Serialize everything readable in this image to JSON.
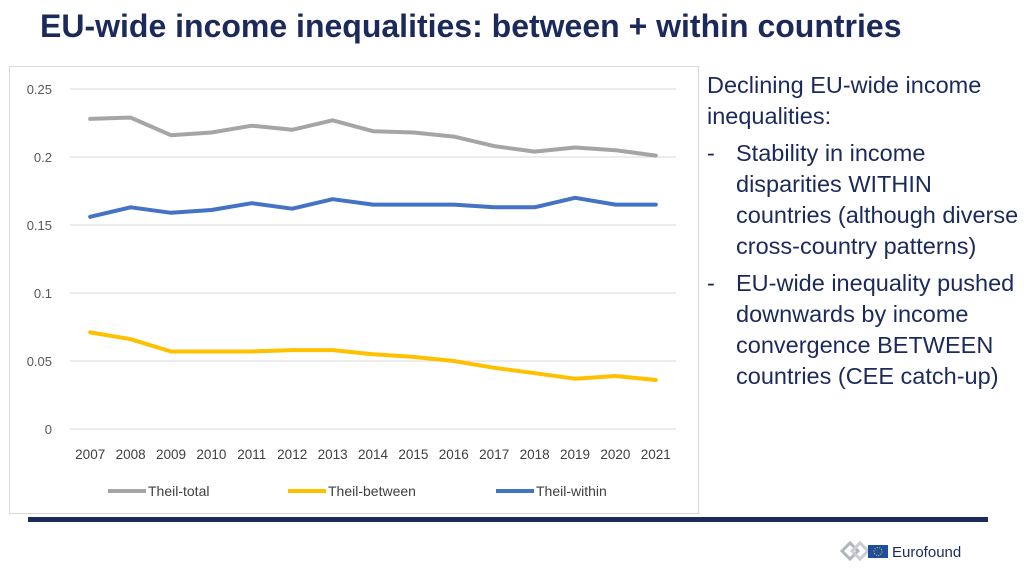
{
  "slide": {
    "title": "EU-wide income inequalities: between + within countries"
  },
  "notes": {
    "lead": "Declining EU-wide income inequalities:",
    "bullets": [
      "Stability in income disparities WITHIN countries (although diverse cross-country patterns)",
      "EU-wide inequality pushed downwards by income convergence BETWEEN countries (CEE catch-up)"
    ],
    "bullet_marker": "-"
  },
  "footer": {
    "logo_text": "Eurofound",
    "logo_icon": "eurofound-logo-icon",
    "rule_color": "#1b2a5a"
  },
  "chart_data": {
    "type": "line",
    "title": "",
    "xlabel": "",
    "ylabel": "",
    "ylim": [
      0,
      0.25
    ],
    "yticks": [
      "0",
      "0.05",
      "0.1",
      "0.15",
      "0.2",
      "0.25"
    ],
    "x": [
      "2007",
      "2008",
      "2009",
      "2010",
      "2011",
      "2012",
      "2013",
      "2014",
      "2015",
      "2016",
      "2017",
      "2018",
      "2019",
      "2020",
      "2021"
    ],
    "grid": true,
    "legend_position": "bottom",
    "series": [
      {
        "name": "Theil-total",
        "color": "#a5a5a5",
        "values": [
          0.228,
          0.229,
          0.216,
          0.218,
          0.223,
          0.22,
          0.227,
          0.219,
          0.218,
          0.215,
          0.208,
          0.204,
          0.207,
          0.205,
          0.201
        ]
      },
      {
        "name": "Theil-between",
        "color": "#ffc000",
        "values": [
          0.071,
          0.066,
          0.057,
          0.057,
          0.057,
          0.058,
          0.058,
          0.055,
          0.053,
          0.05,
          0.045,
          0.041,
          0.037,
          0.039,
          0.036
        ]
      },
      {
        "name": "Theil-within",
        "color": "#4472c4",
        "values": [
          0.156,
          0.163,
          0.159,
          0.161,
          0.166,
          0.162,
          0.169,
          0.165,
          0.165,
          0.165,
          0.163,
          0.163,
          0.17,
          0.165,
          0.165
        ]
      }
    ]
  }
}
